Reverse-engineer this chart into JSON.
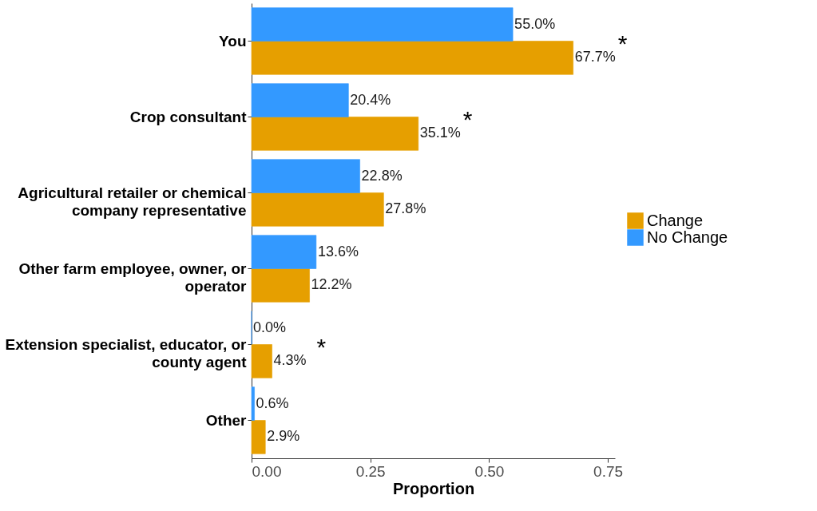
{
  "chart_data": {
    "type": "bar",
    "orientation": "horizontal",
    "xlabel": "Proportion",
    "categories": [
      "You",
      "Crop consultant",
      "Agricultural retailer or chemical company representative",
      "Other farm employee, owner, or operator",
      "Extension specialist, educator, or county agent",
      "Other"
    ],
    "series": [
      {
        "name": "Change",
        "color": "#e69f00",
        "values": [
          0.677,
          0.351,
          0.278,
          0.122,
          0.043,
          0.029
        ],
        "value_labels": [
          "67.7%",
          "35.1%",
          "27.8%",
          "12.2%",
          "4.3%",
          "2.9%"
        ]
      },
      {
        "name": "No Change",
        "color": "#3399ff",
        "values": [
          0.55,
          0.204,
          0.228,
          0.136,
          0.0,
          0.006
        ],
        "value_labels": [
          "55.0%",
          "20.4%",
          "22.8%",
          "13.6%",
          "0.0%",
          "0.6%"
        ]
      }
    ],
    "xlim": [
      0,
      0.765
    ],
    "xticks": [
      {
        "value": 0,
        "label": "0.00"
      },
      {
        "value": 0.25,
        "label": "0.25"
      },
      {
        "value": 0.5,
        "label": "0.50"
      },
      {
        "value": 0.75,
        "label": "0.75"
      }
    ],
    "grid": false,
    "legend": "right",
    "annotations": [
      {
        "text": "*",
        "x": 0.677,
        "y": "You"
      },
      {
        "text": "*",
        "x": 0.351,
        "y": "Crop consultant"
      },
      {
        "text": "*",
        "x": 0.043,
        "y": "Extension specialist, educator, or county agent"
      }
    ]
  }
}
